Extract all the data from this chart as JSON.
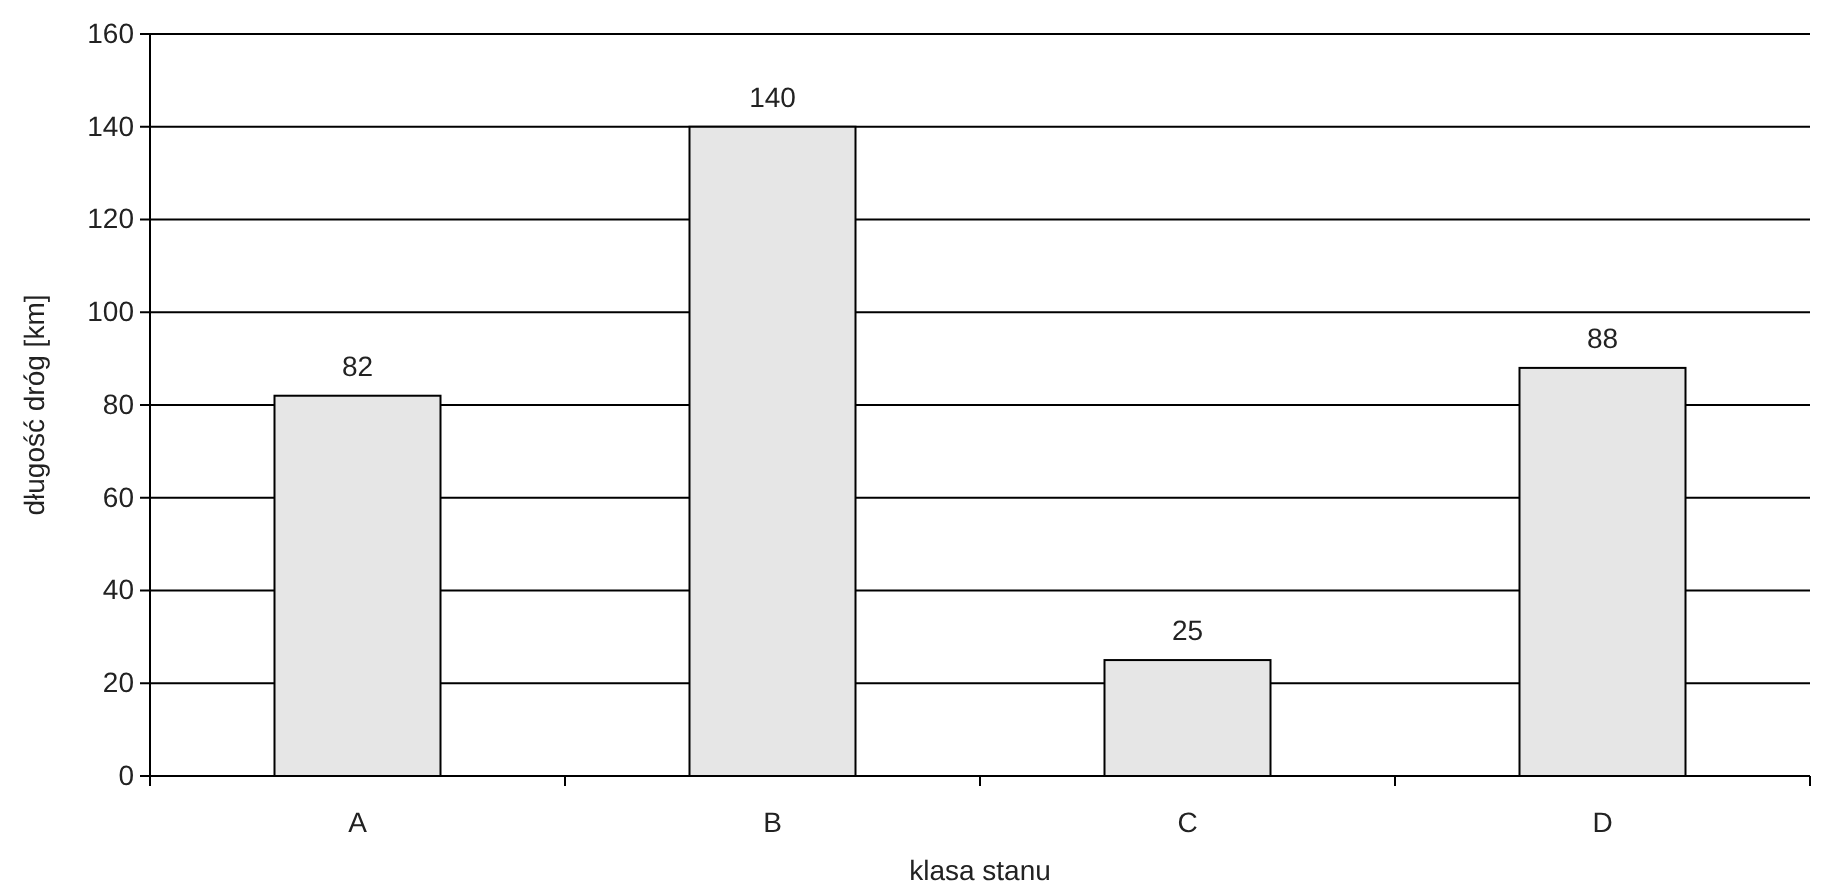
{
  "chart_data": {
    "type": "bar",
    "xlabel": "klasa stanu",
    "ylabel": "długość dróg [km]",
    "categories": [
      "A",
      "B",
      "C",
      "D"
    ],
    "values": [
      82,
      140,
      25,
      88
    ],
    "color": "#e6e6e6",
    "ylim": [
      0,
      160
    ],
    "yticks": [
      0,
      20,
      40,
      60,
      80,
      100,
      120,
      140,
      160
    ],
    "grid": "y",
    "data_labels": true
  }
}
